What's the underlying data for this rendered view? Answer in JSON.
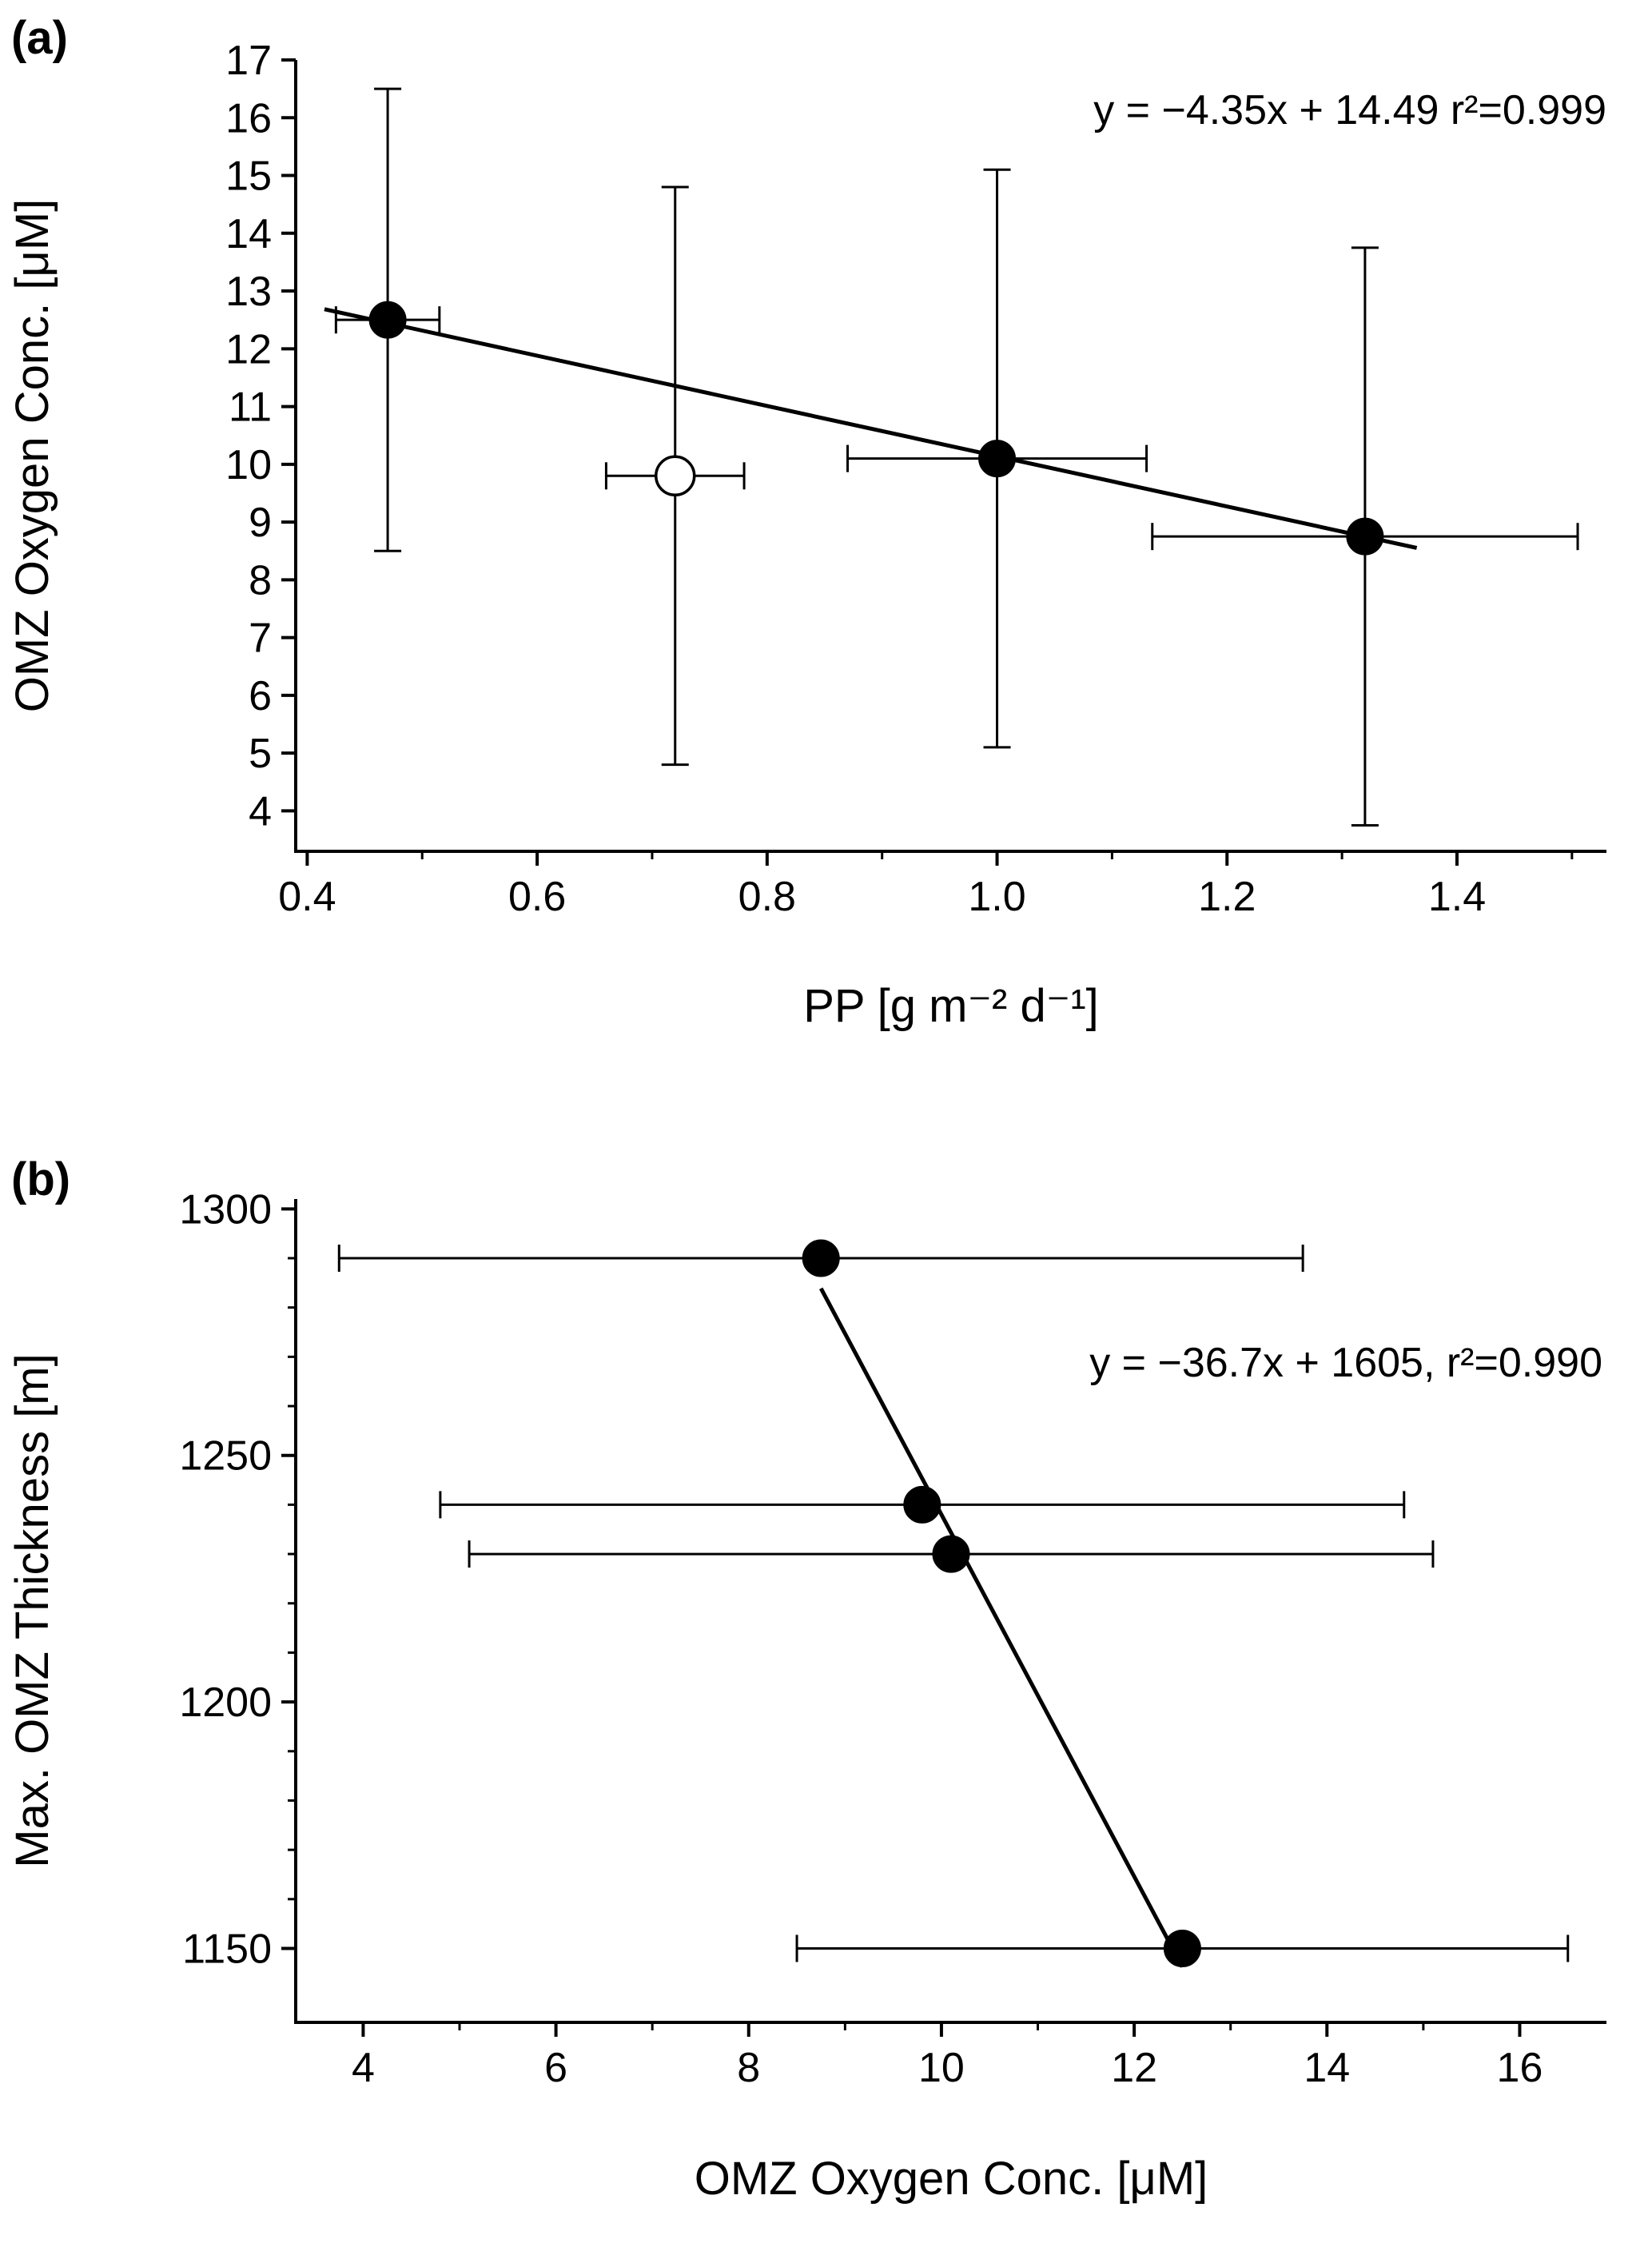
{
  "figure": {
    "background": "#ffffff",
    "foreground": "#000000",
    "panels": {
      "a": {
        "label": "(a)"
      },
      "b": {
        "label": "(b)"
      }
    }
  },
  "chart_data": [
    {
      "type": "scatter",
      "panel": "a",
      "title": "",
      "xlabel": "PP [g m⁻² d⁻¹]",
      "ylabel": "OMZ Oxygen Conc. [μM]",
      "xlim": [
        0.39,
        1.53
      ],
      "ylim": [
        3.3,
        17
      ],
      "xticks": [
        0.4,
        0.6,
        0.8,
        1.0,
        1.2,
        1.4
      ],
      "xtick_labels": [
        "0.4",
        "0.6",
        "0.8",
        "1.0",
        "1.2",
        "1.4"
      ],
      "yticks": [
        4,
        5,
        6,
        7,
        8,
        9,
        10,
        11,
        12,
        13,
        14,
        15,
        16,
        17
      ],
      "ytick_labels": [
        "4",
        "5",
        "6",
        "7",
        "8",
        "9",
        "10",
        "11",
        "12",
        "13",
        "14",
        "15",
        "16",
        "17"
      ],
      "xminor": [
        0.5,
        0.7,
        0.9,
        1.1,
        1.3,
        1.5
      ],
      "yminor": [],
      "grid": false,
      "legend": null,
      "annotation": "y = −4.35x + 14.49 r²=0.999",
      "regression": {
        "slope": -4.35,
        "intercept": 14.49,
        "r2": 0.999,
        "x1": 0.415,
        "x2": 1.365
      },
      "series": [
        {
          "name": "omz-oxygen-vs-pp-filled",
          "marker": "filled-circle",
          "color": "#000000",
          "points": [
            {
              "x": 0.47,
              "y": 12.5,
              "xerr": 0.045,
              "yerr": 4.0
            },
            {
              "x": 1.0,
              "y": 10.1,
              "xerr": 0.13,
              "yerr": 5.0
            },
            {
              "x": 1.32,
              "y": 8.75,
              "xerr": 0.185,
              "yerr": 5.0
            }
          ]
        },
        {
          "name": "omz-oxygen-vs-pp-open",
          "marker": "open-circle",
          "color": "#000000",
          "points": [
            {
              "x": 0.72,
              "y": 9.8,
              "xerr": 0.06,
              "yerr": 5.0
            }
          ]
        }
      ]
    },
    {
      "type": "scatter",
      "panel": "b",
      "title": "",
      "xlabel": "OMZ Oxygen Conc. [μM]",
      "ylabel": "Max. OMZ Thickness [m]",
      "xlim": [
        3.3,
        16.9
      ],
      "ylim": [
        1135,
        1302
      ],
      "xticks": [
        4,
        6,
        8,
        10,
        12,
        14,
        16
      ],
      "xtick_labels": [
        "4",
        "6",
        "8",
        "10",
        "12",
        "14",
        "16"
      ],
      "yticks": [
        1150,
        1200,
        1250,
        1300
      ],
      "ytick_labels": [
        "1150",
        "1200",
        "1250",
        "1300"
      ],
      "xminor": [
        5,
        7,
        9,
        11,
        13,
        15
      ],
      "yminor": [
        1160,
        1170,
        1180,
        1190,
        1210,
        1220,
        1230,
        1240,
        1260,
        1270,
        1280,
        1290
      ],
      "grid": false,
      "legend": null,
      "annotation": "y = −36.7x + 1605, r²=0.990",
      "regression": {
        "slope": -36.7,
        "intercept": 1605,
        "r2": 0.99,
        "x1": 8.75,
        "x2": 12.5
      },
      "series": [
        {
          "name": "omz-thickness-vs-oxygen",
          "marker": "filled-circle",
          "color": "#000000",
          "points": [
            {
              "x": 8.75,
              "y": 1290,
              "xerr": 5.0,
              "yerr": 0
            },
            {
              "x": 9.8,
              "y": 1240,
              "xerr": 5.0,
              "yerr": 0
            },
            {
              "x": 10.1,
              "y": 1230,
              "xerr": 5.0,
              "yerr": 0
            },
            {
              "x": 12.5,
              "y": 1150,
              "xerr": 4.0,
              "yerr": 0
            }
          ]
        }
      ]
    }
  ]
}
